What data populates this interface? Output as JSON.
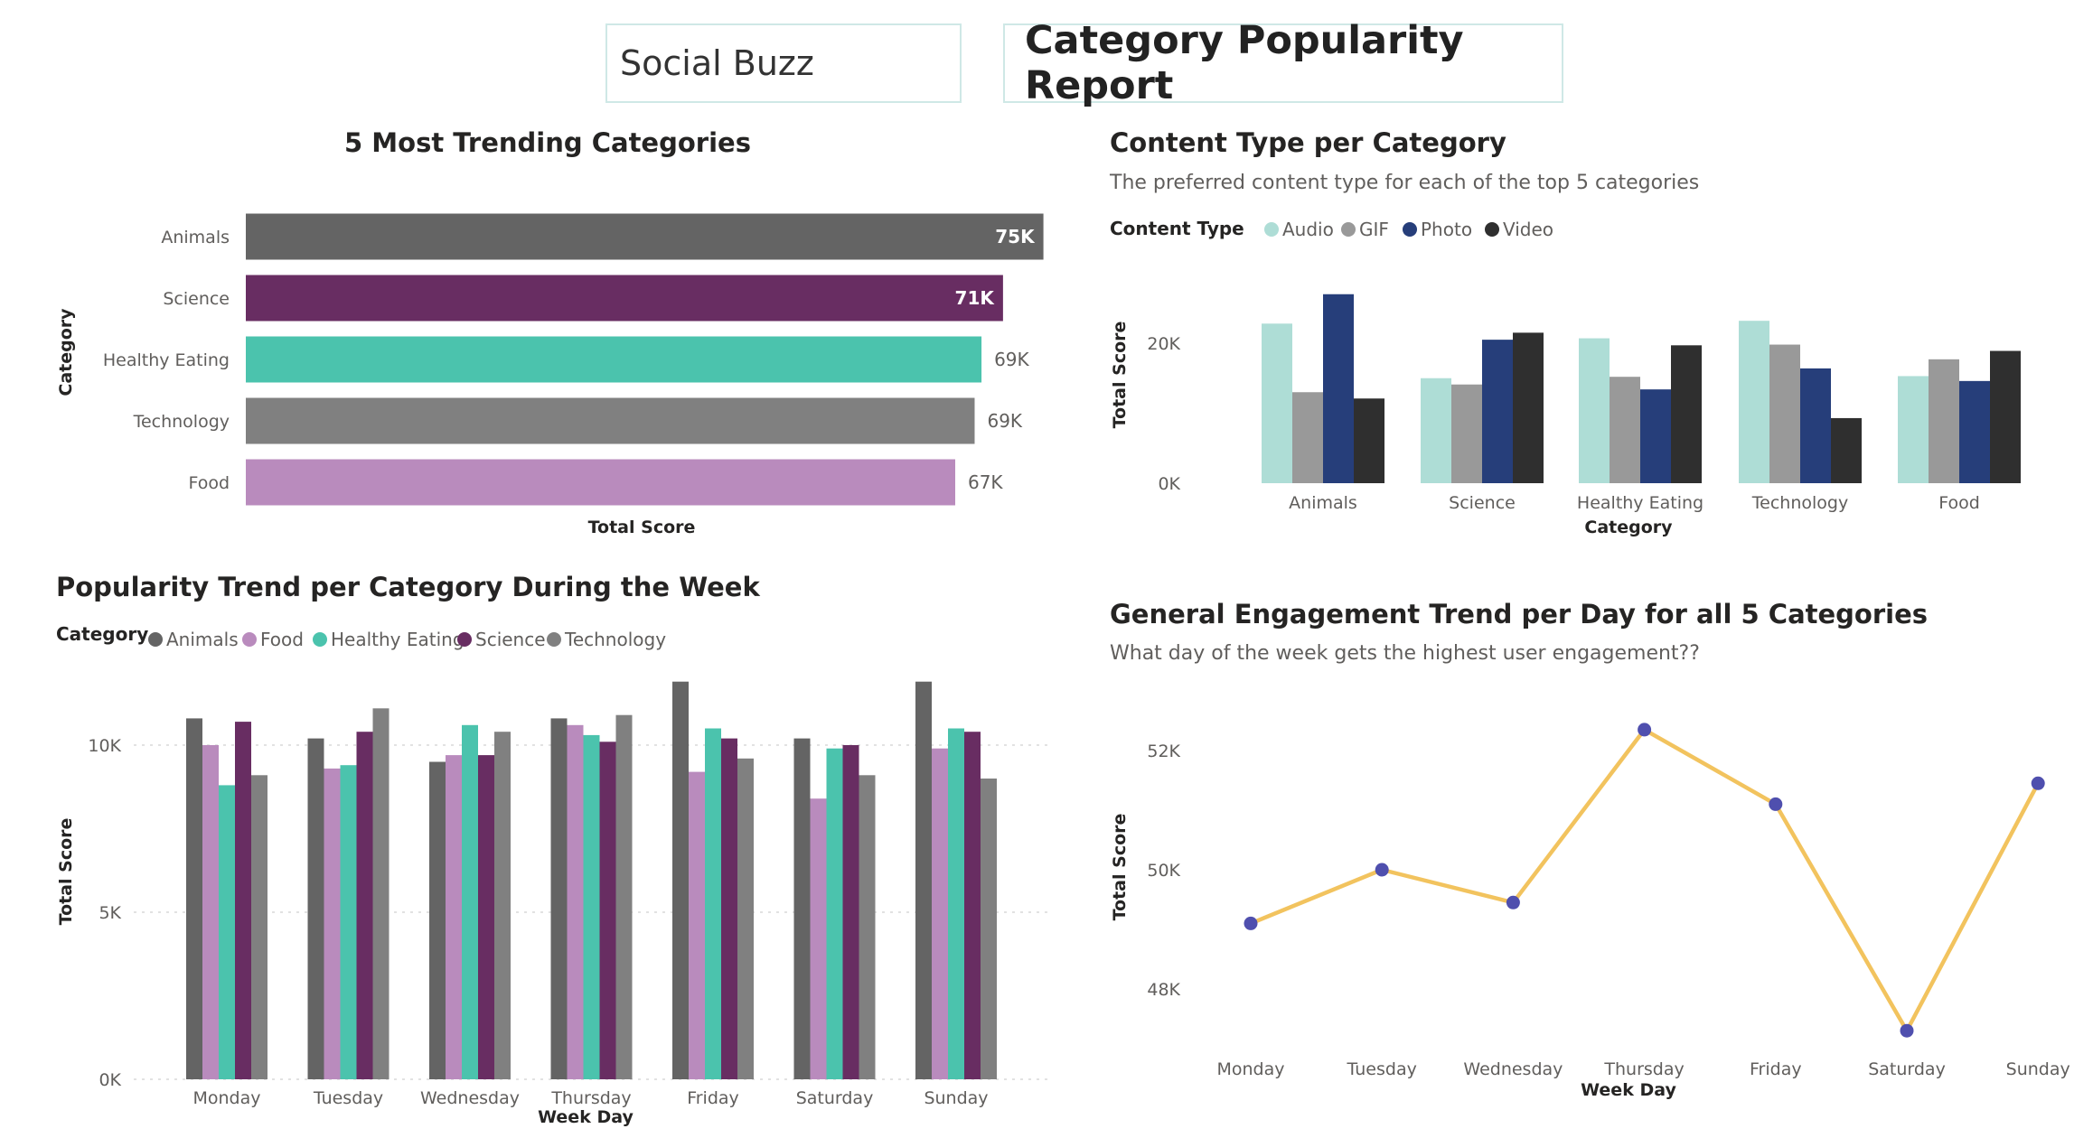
{
  "header": {
    "brand": "Social Buzz",
    "report_title": "Category Popularity Report"
  },
  "colors": {
    "Animals": "#646464",
    "Science": "#682d62",
    "Healthy Eating": "#4bc3ad",
    "Technology": "#808080",
    "Food": "#b98bbd",
    "Audio": "#aeddd6",
    "GIF": "#999999",
    "Photo": "#263e7a",
    "Video": "#2f2f2f",
    "line": "#f2c35e",
    "marker": "#4f4fae"
  },
  "chart_data": [
    {
      "id": "trending",
      "type": "bar",
      "orientation": "horizontal",
      "title": "5 Most Trending Categories",
      "xlabel": "Total Score",
      "ylabel": "Category",
      "categories": [
        "Animals",
        "Science",
        "Healthy Eating",
        "Technology",
        "Food"
      ],
      "values": [
        74965,
        71168,
        69145,
        68500,
        66676
      ],
      "data_labels": [
        "75K",
        "71K",
        "69K",
        "69K",
        "67K"
      ],
      "label_inside": [
        true,
        true,
        false,
        false,
        false
      ],
      "xlim": [
        0,
        75000
      ]
    },
    {
      "id": "content_type",
      "type": "bar",
      "title": "Content Type per Category",
      "subtitle": "The preferred content type for each of the top 5 categories",
      "legend_title": "Content Type",
      "xlabel": "Category",
      "ylabel": "Total Score",
      "categories": [
        "Animals",
        "Science",
        "Healthy Eating",
        "Technology",
        "Food"
      ],
      "series": [
        {
          "name": "Audio",
          "values": [
            22800,
            15000,
            20700,
            23200,
            15300
          ]
        },
        {
          "name": "GIF",
          "values": [
            13000,
            14100,
            15200,
            19800,
            17700
          ]
        },
        {
          "name": "Photo",
          "values": [
            27000,
            20500,
            13400,
            16400,
            14600
          ]
        },
        {
          "name": "Video",
          "values": [
            12100,
            21500,
            19700,
            9300,
            18900
          ]
        }
      ],
      "yticks": [
        {
          "v": 0,
          "l": "0K"
        },
        {
          "v": 20000,
          "l": "20K"
        }
      ],
      "ylim": [
        0,
        27500
      ]
    },
    {
      "id": "weekly_trend",
      "type": "bar",
      "title": "Popularity Trend per Category During the Week",
      "legend_title": "Category",
      "xlabel": "Week Day",
      "ylabel": "Total Score",
      "categories": [
        "Monday",
        "Tuesday",
        "Wednesday",
        "Thursday",
        "Friday",
        "Saturday",
        "Sunday"
      ],
      "series": [
        {
          "name": "Animals",
          "values": [
            10800,
            10200,
            9500,
            10800,
            11900,
            10200,
            11900
          ]
        },
        {
          "name": "Food",
          "values": [
            10000,
            9300,
            9700,
            10600,
            9200,
            8400,
            9900
          ]
        },
        {
          "name": "Healthy Eating",
          "values": [
            8800,
            9400,
            10600,
            10300,
            10500,
            9900,
            10500
          ]
        },
        {
          "name": "Science",
          "values": [
            10700,
            10400,
            9700,
            10100,
            10200,
            10000,
            10400
          ]
        },
        {
          "name": "Technology",
          "values": [
            9100,
            11100,
            10400,
            10900,
            9600,
            9100,
            9000
          ]
        }
      ],
      "yticks": [
        {
          "v": 0,
          "l": "0K"
        },
        {
          "v": 5000,
          "l": "5K"
        },
        {
          "v": 10000,
          "l": "10K"
        }
      ],
      "ylim": [
        0,
        12000
      ],
      "grid": true
    },
    {
      "id": "engagement",
      "type": "line",
      "title": "General Engagement Trend per Day for all 5 Categories",
      "subtitle": "What day of the week gets the highest user engagement??",
      "xlabel": "Week Day",
      "ylabel": "Total Score",
      "categories": [
        "Monday",
        "Tuesday",
        "Wednesday",
        "Thursday",
        "Friday",
        "Saturday",
        "Sunday"
      ],
      "values": [
        49100,
        50000,
        49450,
        52350,
        51100,
        47300,
        51450
      ],
      "yticks": [
        {
          "v": 48000,
          "l": "48K"
        },
        {
          "v": 50000,
          "l": "50K"
        },
        {
          "v": 52000,
          "l": "52K"
        }
      ],
      "ylim": [
        47000,
        53000
      ]
    }
  ]
}
